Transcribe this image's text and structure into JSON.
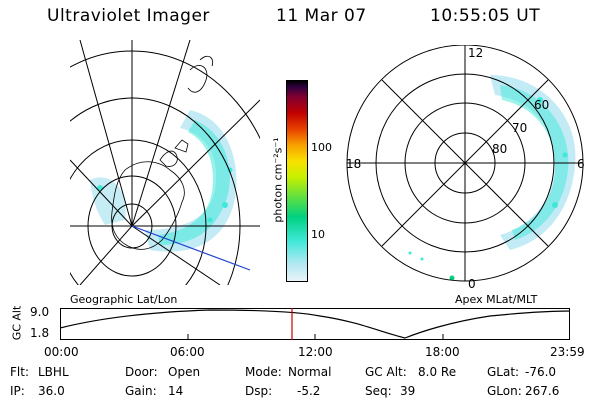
{
  "header": {
    "instrument": "Ultraviolet Imager",
    "date": "11 Mar 07",
    "time": "10:55:05 UT"
  },
  "panels": {
    "left_label": "Geographic Lat/Lon",
    "right_label": "Apex MLat/MLT"
  },
  "colorbar": {
    "label": "photon cm⁻²s⁻¹",
    "ticks": [
      "100",
      "10"
    ],
    "scale": "log",
    "colors": [
      "#e8f4f8",
      "#b8e8f4",
      "#40e8d8",
      "#00d080",
      "#60e040",
      "#c8f000",
      "#f8e000",
      "#f8a000",
      "#e84000",
      "#c00000",
      "#800030",
      "#300040",
      "#000000"
    ]
  },
  "polar": {
    "mlt_labels": {
      "top": "12",
      "left": "18",
      "right": "6",
      "bottom": "0"
    },
    "lat_labels": [
      "60",
      "70",
      "80"
    ]
  },
  "altitude_plot": {
    "ylabel": "GC Alt",
    "yticks": [
      "9.0",
      "1.8"
    ],
    "xticks": [
      "00:00",
      "06:00",
      "12:00",
      "18:00",
      "23:59"
    ],
    "current_time": "10:55:05",
    "line_color": "#cc0000"
  },
  "footer": {
    "rows": [
      [
        {
          "key": "Flt:",
          "val": "LBHL"
        },
        {
          "key": "Door:",
          "val": "Open"
        },
        {
          "key": "Mode:",
          "val": "Normal"
        },
        {
          "key": "GC Alt:",
          "val": "8.0 Re"
        },
        {
          "key": "GLat:",
          "val": "-76.0"
        }
      ],
      [
        {
          "key": "IP:",
          "val": "36.0"
        },
        {
          "key": "Gain:",
          "val": "14"
        },
        {
          "key": "Dsp:",
          "val": "-5.2"
        },
        {
          "key": "Seq:",
          "val": "39"
        },
        {
          "key": "GLon:",
          "val": "267.6"
        }
      ]
    ]
  }
}
